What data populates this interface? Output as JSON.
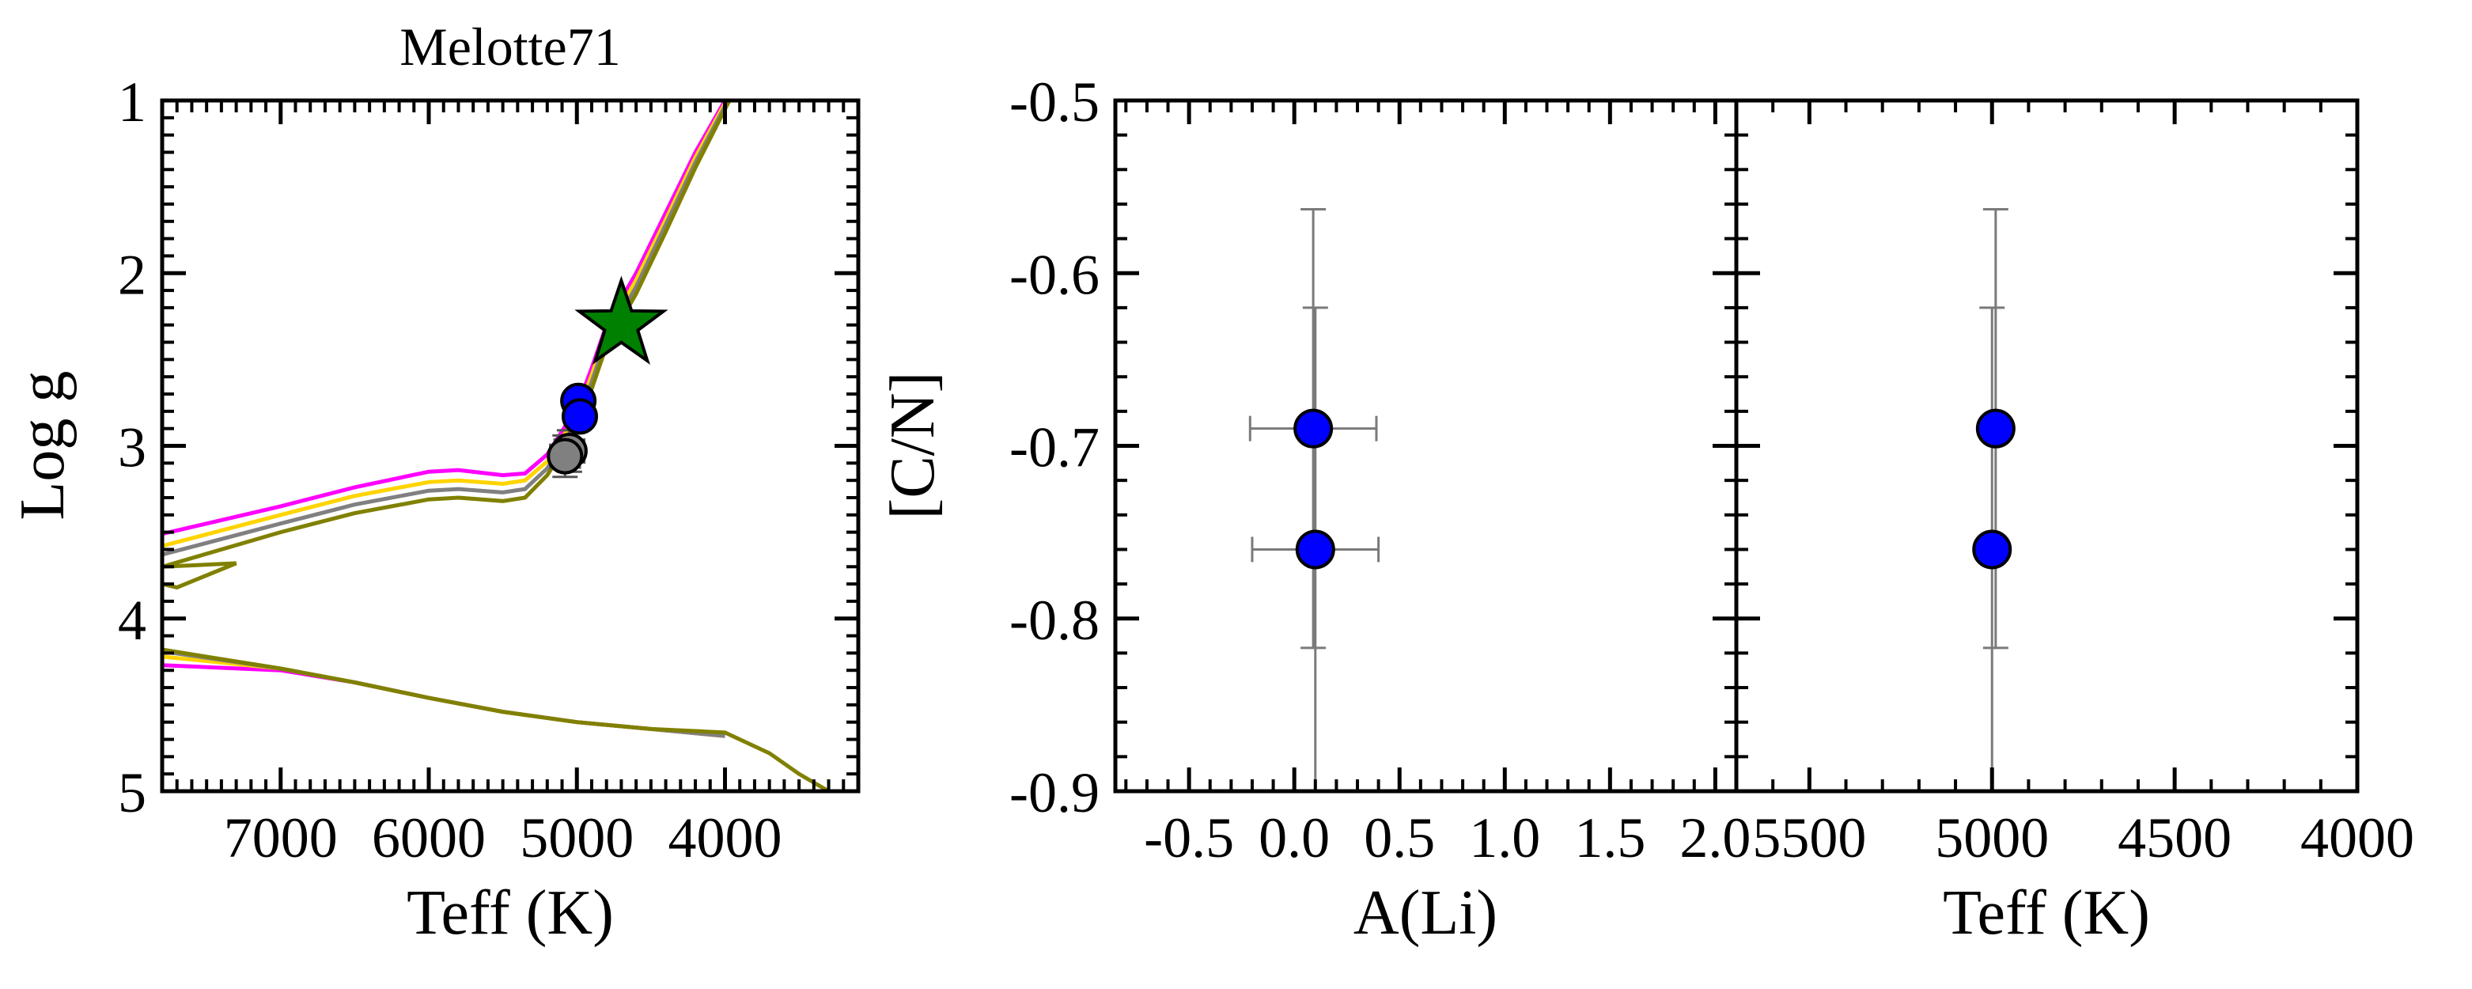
{
  "chart_data": [
    {
      "id": "hr",
      "type": "line",
      "title": "Melotte71",
      "xlabel": "Teff (K)",
      "ylabel": "Log g",
      "xlim": [
        7800,
        3100
      ],
      "ylim": [
        5,
        1
      ],
      "x_ticks": [
        7000,
        6000,
        5000,
        4000
      ],
      "y_ticks": [
        1,
        2,
        3,
        4,
        5
      ],
      "grid": false,
      "series": [
        {
          "color": "#ff00ff",
          "giant_branch": [
            [
              7800,
              3.51
            ],
            [
              7000,
              3.35
            ],
            [
              6500,
              3.24
            ],
            [
              6000,
              3.15
            ],
            [
              5800,
              3.14
            ],
            [
              5500,
              3.17
            ],
            [
              5350,
              3.16
            ],
            [
              5200,
              3.05
            ],
            [
              5000,
              2.78
            ],
            [
              4900,
              2.55
            ],
            [
              4800,
              2.3
            ],
            [
              4600,
              2.0
            ],
            [
              4400,
              1.65
            ],
            [
              4200,
              1.3
            ],
            [
              4000,
              1.0
            ]
          ],
          "main_sequence": [
            [
              7800,
              4.27
            ],
            [
              7000,
              4.3
            ],
            [
              6500,
              4.37
            ],
            [
              6000,
              4.46
            ],
            [
              5500,
              4.54
            ],
            [
              5000,
              4.6
            ],
            [
              4500,
              4.64
            ],
            [
              4000,
              4.68
            ]
          ]
        },
        {
          "color": "#ffd400",
          "giant_branch": [
            [
              7800,
              3.58
            ],
            [
              7000,
              3.4
            ],
            [
              6500,
              3.29
            ],
            [
              6000,
              3.21
            ],
            [
              5800,
              3.2
            ],
            [
              5500,
              3.22
            ],
            [
              5350,
              3.2
            ],
            [
              5200,
              3.09
            ],
            [
              5000,
              2.82
            ],
            [
              4900,
              2.59
            ],
            [
              4800,
              2.34
            ],
            [
              4600,
              2.04
            ],
            [
              4400,
              1.69
            ],
            [
              4200,
              1.33
            ],
            [
              3990,
              1.0
            ]
          ],
          "main_sequence": [
            [
              7800,
              4.22
            ],
            [
              7000,
              4.29
            ],
            [
              6500,
              4.37
            ],
            [
              6000,
              4.46
            ],
            [
              5500,
              4.54
            ],
            [
              5000,
              4.6
            ],
            [
              4500,
              4.64
            ],
            [
              4000,
              4.68
            ]
          ]
        },
        {
          "color": "#808080",
          "giant_branch": [
            [
              7800,
              3.63
            ],
            [
              7000,
              3.45
            ],
            [
              6500,
              3.34
            ],
            [
              6000,
              3.26
            ],
            [
              5800,
              3.25
            ],
            [
              5500,
              3.27
            ],
            [
              5350,
              3.25
            ],
            [
              5200,
              3.13
            ],
            [
              5000,
              2.86
            ],
            [
              4900,
              2.63
            ],
            [
              4800,
              2.38
            ],
            [
              4600,
              2.08
            ],
            [
              4400,
              1.72
            ],
            [
              4200,
              1.36
            ],
            [
              3980,
              1.0
            ]
          ],
          "main_sequence": [
            [
              7800,
              4.19
            ],
            [
              7000,
              4.29
            ],
            [
              6500,
              4.37
            ],
            [
              6000,
              4.46
            ],
            [
              5500,
              4.54
            ],
            [
              5000,
              4.6
            ],
            [
              4500,
              4.64
            ],
            [
              4000,
              4.68
            ]
          ]
        },
        {
          "color": "#808000",
          "giant_branch": [
            [
              7800,
              3.7
            ],
            [
              7000,
              3.5
            ],
            [
              6500,
              3.39
            ],
            [
              6000,
              3.31
            ],
            [
              5800,
              3.3
            ],
            [
              5500,
              3.32
            ],
            [
              5350,
              3.3
            ],
            [
              5200,
              3.17
            ],
            [
              5000,
              2.9
            ],
            [
              4900,
              2.67
            ],
            [
              4800,
              2.42
            ],
            [
              4600,
              2.12
            ],
            [
              4400,
              1.76
            ],
            [
              4200,
              1.39
            ],
            [
              3970,
              1.0
            ]
          ],
          "main_sequence": [
            [
              7800,
              4.18
            ],
            [
              7000,
              4.29
            ],
            [
              6500,
              4.37
            ],
            [
              6000,
              4.46
            ],
            [
              5500,
              4.54
            ],
            [
              5000,
              4.6
            ],
            [
              4500,
              4.64
            ],
            [
              4000,
              4.66
            ],
            [
              3700,
              4.78
            ],
            [
              3500,
              4.9
            ],
            [
              3300,
              5.0
            ]
          ],
          "hook": [
            [
              7800,
              3.7
            ],
            [
              7300,
              3.68
            ],
            [
              7700,
              3.82
            ],
            [
              7800,
              3.8
            ]
          ]
        }
      ],
      "markers": [
        {
          "shape": "circle",
          "color": "#808080",
          "x": 5050,
          "y": 3.03,
          "xerr": 100,
          "yerr": 0.12
        },
        {
          "shape": "circle",
          "color": "#808080",
          "x": 5080,
          "y": 3.06,
          "xerr": 100,
          "yerr": 0.12
        },
        {
          "shape": "circle",
          "color": "#0000ff",
          "x": 4990,
          "y": 2.74
        },
        {
          "shape": "circle",
          "color": "#0000ff",
          "x": 4980,
          "y": 2.83
        },
        {
          "shape": "star",
          "color": "#008000",
          "x": 4700,
          "y": 2.3
        }
      ]
    },
    {
      "id": "cn_li",
      "type": "scatter",
      "xlabel": "A(Li)",
      "ylabel": "[C/N]",
      "xlim": [
        -0.85,
        2.1
      ],
      "ylim": [
        -0.9,
        -0.5
      ],
      "x_ticks": [
        "-0.5",
        "0.0",
        "0.5",
        "1.0",
        "1.5",
        "2.0"
      ],
      "y_ticks": [
        "-0.5",
        "-0.6",
        "-0.7",
        "-0.8",
        "-0.9"
      ],
      "grid": false,
      "points": [
        {
          "x": 0.09,
          "y": -0.69,
          "xerr": 0.3,
          "yerr": [
            0.127,
            0.127
          ],
          "color": "#0000ff"
        },
        {
          "x": 0.1,
          "y": -0.76,
          "xerr": 0.3,
          "yerr": [
            0.14,
            0.14
          ],
          "color": "#0000ff"
        }
      ]
    },
    {
      "id": "cn_teff",
      "type": "scatter",
      "xlabel": "Teff (K)",
      "xlim": [
        5700,
        4000
      ],
      "ylim": [
        -0.9,
        -0.5
      ],
      "x_ticks": [
        "5500",
        "5000",
        "4500",
        "4000"
      ],
      "grid": false,
      "points": [
        {
          "x": 4990,
          "y": -0.69,
          "xerr": 20,
          "yerr": [
            0.127,
            0.127
          ],
          "color": "#0000ff"
        },
        {
          "x": 5000,
          "y": -0.76,
          "xerr": 20,
          "yerr": [
            0.14,
            0.14
          ],
          "color": "#0000ff"
        }
      ]
    }
  ]
}
